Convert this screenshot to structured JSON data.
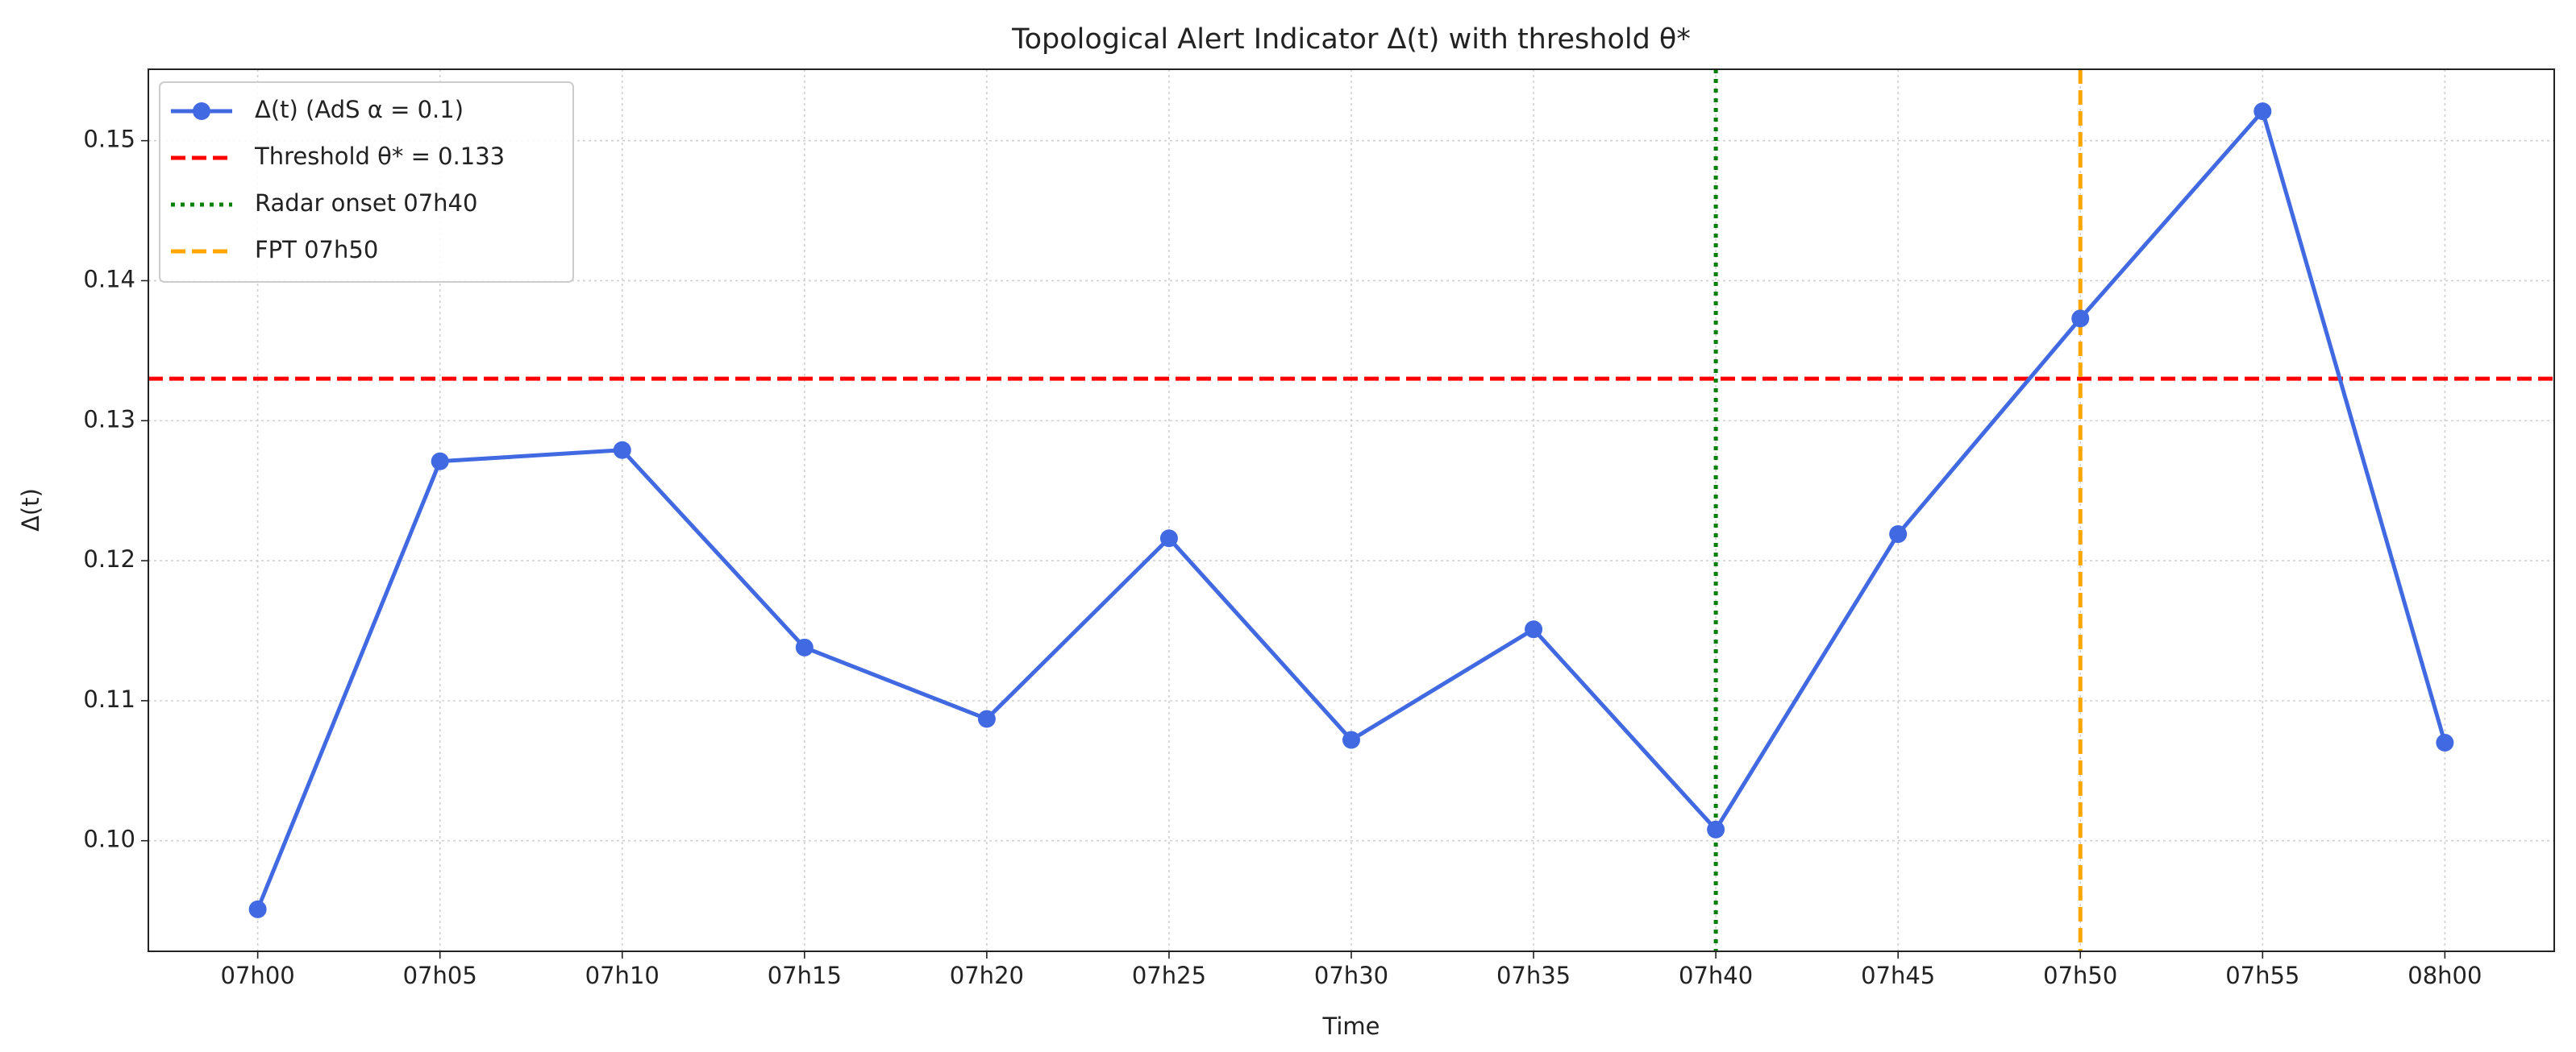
{
  "chart_data": {
    "type": "line",
    "title": "Topological Alert Indicator Δ(t) with threshold θ*",
    "xlabel": "Time",
    "ylabel": "Δ(t)",
    "categories": [
      "07h00",
      "07h05",
      "07h10",
      "07h15",
      "07h20",
      "07h25",
      "07h30",
      "07h35",
      "07h40",
      "07h45",
      "07h50",
      "07h55",
      "08h00"
    ],
    "series": [
      {
        "name": "Δ(t) (AdS α = 0.1)",
        "color": "#4169e1",
        "values": [
          0.0951,
          0.1271,
          0.1279,
          0.1138,
          0.1087,
          0.1216,
          0.1072,
          0.1151,
          0.1008,
          0.1219,
          0.1373,
          0.1521,
          0.107
        ]
      }
    ],
    "hlines": [
      {
        "name": "Threshold θ* = 0.133",
        "value": 0.133,
        "color": "#ff0000",
        "style": "dashed"
      }
    ],
    "vlines": [
      {
        "name": "Radar onset 07h40",
        "x": "07h40",
        "color": "#008000",
        "style": "dotted"
      },
      {
        "name": "FPT 07h50",
        "x": "07h50",
        "color": "#ffa500",
        "style": "dashed"
      }
    ],
    "ylim": [
      0.0921,
      0.1551
    ],
    "yticks": [
      {
        "value": 0.1,
        "label": "0.10"
      },
      0.11,
      0.12,
      0.13,
      0.14,
      0.15
    ],
    "grid": true,
    "legend": "upper left"
  }
}
